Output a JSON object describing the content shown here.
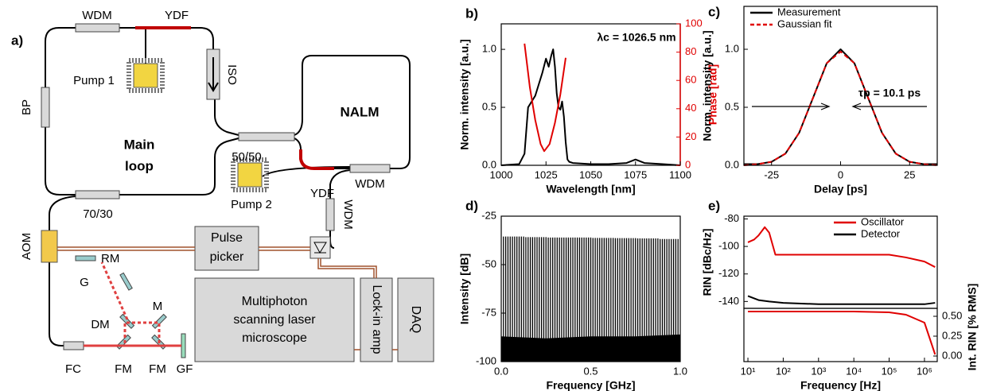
{
  "diagram": {
    "label": "a)",
    "wdm_top": "WDM",
    "ydf_top": "YDF",
    "iso": "ISO",
    "pump1": "Pump 1",
    "bp": "BP",
    "main": "Main",
    "loop": "loop",
    "split_50": "50/50",
    "nalm": "NALM",
    "ydf_nalm": "YDF",
    "wdm_nalm": "WDM",
    "pump2": "Pump 2",
    "wdm_vert": "WDM",
    "split_70": "70/30",
    "aom": "AOM",
    "pulse": "Pulse",
    "picker": "picker",
    "rm": "RM",
    "g": "G",
    "dm": "DM",
    "m": "M",
    "fm1": "FM",
    "fm2": "FM",
    "gf": "GF",
    "fc": "FC",
    "micro1": "Multiphoton",
    "micro2": "scanning laser",
    "micro3": "microscope",
    "lockin": "Lock-in amp",
    "daq": "DAQ"
  },
  "chart_data": [
    {
      "type": "line",
      "label": "b)",
      "annotation": "λc = 1026.5 nm",
      "xlabel": "Wavelength [nm]",
      "ylabel": "Norm. intensity [a.u.]",
      "y2label": "Phase [rad]",
      "y2_color": "#e00000",
      "xlim": [
        1000,
        1100
      ],
      "xticks": [
        1000,
        1025,
        1050,
        1075,
        1100
      ],
      "ylim": [
        0,
        1.22
      ],
      "yticks": [
        {
          "value": 0,
          "label": "0.0"
        },
        {
          "value": 0.5,
          "label": "0.5"
        },
        {
          "value": 1,
          "label": "1.0"
        }
      ],
      "y2lim": [
        0,
        100
      ],
      "y2ticks": [
        0,
        20,
        40,
        60,
        80,
        100
      ],
      "grid": false,
      "series": [
        {
          "color": "#000000",
          "x": [
            1000,
            1010,
            1013,
            1015,
            1017,
            1019,
            1021,
            1023,
            1025,
            1026.5,
            1028,
            1029,
            1030,
            1031,
            1032,
            1033,
            1034,
            1035,
            1036,
            1037,
            1038,
            1040,
            1050,
            1060,
            1070,
            1075,
            1080,
            1090,
            1100
          ],
          "values": [
            0,
            0.01,
            0.1,
            0.5,
            0.55,
            0.6,
            0.7,
            0.8,
            0.92,
            0.85,
            0.95,
            1.0,
            0.85,
            0.62,
            0.5,
            0.48,
            0.55,
            0.42,
            0.2,
            0.05,
            0.03,
            0.02,
            0.01,
            0.01,
            0.02,
            0.05,
            0.02,
            0.01,
            0
          ]
        },
        {
          "color": "#e00000",
          "axis": "y2",
          "x": [
            1013,
            1016,
            1019,
            1022,
            1024,
            1027,
            1030,
            1033,
            1036
          ],
          "values": [
            86,
            55,
            32,
            15,
            10,
            15,
            30,
            50,
            76
          ]
        }
      ]
    },
    {
      "type": "line",
      "label": "c)",
      "annotation": "τp = 10.1 ps",
      "xlabel": "Delay [ps]",
      "ylabel": "Norm. intensity [a.u.]",
      "xlim": [
        -35,
        35
      ],
      "xticks": [
        -25,
        0,
        25
      ],
      "ylim": [
        0,
        1.37
      ],
      "yticks": [
        {
          "value": 0,
          "label": "0.0"
        },
        {
          "value": 0.5,
          "label": "0.5"
        },
        {
          "value": 1,
          "label": "1.0"
        }
      ],
      "grid": false,
      "legend": "upper left",
      "x": [
        -35,
        -30,
        -25,
        -20,
        -15,
        -10,
        -5,
        0,
        5,
        10,
        15,
        20,
        25,
        30,
        35
      ],
      "series": [
        {
          "name": "Measurement",
          "color": "#000000",
          "values": [
            0.01,
            0.01,
            0.03,
            0.1,
            0.28,
            0.58,
            0.88,
            1.0,
            0.88,
            0.58,
            0.28,
            0.1,
            0.03,
            0.01,
            0.01
          ]
        },
        {
          "name": "Gaussian fit",
          "color": "#e00000",
          "style": "dashed",
          "values": [
            0,
            0.01,
            0.03,
            0.1,
            0.28,
            0.58,
            0.88,
            0.98,
            0.88,
            0.58,
            0.28,
            0.1,
            0.03,
            0.01,
            0
          ]
        }
      ]
    },
    {
      "type": "spectrum",
      "label": "d)",
      "xlabel": "Frequency [GHz]",
      "ylabel": "Intensity [dB]",
      "xlim": [
        0,
        1
      ],
      "xticks": [
        {
          "value": 0,
          "label": "0.0"
        },
        0.5,
        {
          "value": 1,
          "label": "1.0"
        }
      ],
      "ylim": [
        -100,
        -25
      ],
      "yticks": [
        -100,
        -75,
        -50,
        -25
      ],
      "grid": false,
      "series": [
        {
          "color": "#000000",
          "style": "area",
          "x": [
            0,
            0.25,
            0.5,
            0.75,
            1
          ],
          "values": [
            -87,
            -88,
            -87,
            -87,
            -86
          ]
        },
        {
          "color": "#000000",
          "style": "comb",
          "x": [
            0.0125,
            0.025,
            0.0375,
            0.05,
            0.0625,
            0.075,
            0.0875,
            0.1,
            0.1125,
            0.125,
            0.1375,
            0.15,
            0.1625,
            0.175,
            0.1875,
            0.2,
            0.2125,
            0.225,
            0.2375,
            0.25,
            0.2625,
            0.275,
            0.2875,
            0.3,
            0.3125,
            0.325,
            0.3375,
            0.35,
            0.3625,
            0.375,
            0.3875,
            0.4,
            0.4125,
            0.425,
            0.4375,
            0.45,
            0.4625,
            0.475,
            0.4875,
            0.5,
            0.5125,
            0.525,
            0.5375,
            0.55,
            0.5625,
            0.575,
            0.5875,
            0.6,
            0.6125,
            0.625,
            0.6375,
            0.65,
            0.6625,
            0.675,
            0.6875,
            0.7,
            0.7125,
            0.725,
            0.7375,
            0.75,
            0.7625,
            0.775,
            0.7875,
            0.8,
            0.8125,
            0.825,
            0.8375,
            0.85,
            0.8625,
            0.875,
            0.8875,
            0.9,
            0.9125,
            0.925,
            0.9375,
            0.95,
            0.9625,
            0.975,
            0.9875
          ],
          "values": [
            -35.5,
            -35.5,
            -35.5,
            -35.5,
            -35.5,
            -35.5,
            -35.5,
            -35.5,
            -35.5,
            -35.5,
            -35.8,
            -35.8,
            -35.8,
            -35.8,
            -35.8,
            -35.8,
            -35.8,
            -35.8,
            -35.8,
            -35.8,
            -36,
            -36,
            -36,
            -36,
            -36,
            -36,
            -36,
            -36,
            -36,
            -36,
            -36,
            -36,
            -36,
            -36,
            -36,
            -36,
            -36,
            -36,
            -36,
            -36,
            -36.2,
            -36.2,
            -36.2,
            -36.2,
            -36.2,
            -36.2,
            -36.2,
            -36.2,
            -36.2,
            -36.2,
            -36.3,
            -36.3,
            -36.3,
            -36.3,
            -36.3,
            -36.3,
            -36.3,
            -36.3,
            -36.3,
            -36.3,
            -36.5,
            -36.5,
            -36.5,
            -36.5,
            -36.5,
            -36.5,
            -36.5,
            -36.5,
            -36.5,
            -36.5,
            -36.8,
            -36.8,
            -36.8,
            -36.8,
            -36.8,
            -36.8,
            -36.8,
            -36.8,
            -36.8
          ]
        }
      ]
    },
    {
      "type": "line",
      "label": "e)",
      "xlabel": "Frequency [Hz]",
      "ylabel": "RIN [dBc/Hz]",
      "y2label": "Int. RIN [% RMS]",
      "xscale": "log",
      "xlim": [
        7.7,
        2300000
      ],
      "xticks": [
        {
          "value": 10,
          "label": "10¹"
        },
        {
          "value": 100,
          "label": "10²"
        },
        {
          "value": 1000,
          "label": "10³"
        },
        {
          "value": 10000,
          "label": "10⁴"
        },
        {
          "value": 100000,
          "label": "10⁵"
        },
        {
          "value": 1000000,
          "label": "10⁶"
        }
      ],
      "ylim": [
        -145,
        -78
      ],
      "yticks": [
        -80,
        -100,
        -120,
        -140
      ],
      "y2lim": [
        -0.07,
        0.6
      ],
      "y2ticks": [
        {
          "value": 0,
          "label": "0.00"
        },
        {
          "value": 0.25,
          "label": "0.25"
        },
        {
          "value": 0.5,
          "label": "0.50"
        }
      ],
      "grid": false,
      "legend": "upper right",
      "series": [
        {
          "name": "Oscillator",
          "color": "#e00000",
          "x": [
            10,
            15,
            20,
            30,
            40,
            60,
            100,
            1000,
            10000,
            100000,
            300000,
            1000000,
            2000000
          ],
          "values": [
            -97,
            -95,
            -92,
            -86,
            -90,
            -106,
            -106,
            -106,
            -106,
            -106,
            -108,
            -111,
            -115
          ]
        },
        {
          "name": "Detector",
          "color": "#000000",
          "x": [
            10,
            20,
            40,
            100,
            1000,
            10000,
            100000,
            1000000,
            2000000
          ],
          "values": [
            -136,
            -139,
            -140,
            -141,
            -142,
            -142,
            -142,
            -142,
            -141
          ]
        },
        {
          "color": "#e00000",
          "axis": "y2",
          "x": [
            10,
            1000,
            10000,
            100000,
            300000,
            1000000,
            2000000
          ],
          "values": [
            0.56,
            0.56,
            0.56,
            0.55,
            0.52,
            0.42,
            0.02
          ]
        }
      ]
    }
  ]
}
